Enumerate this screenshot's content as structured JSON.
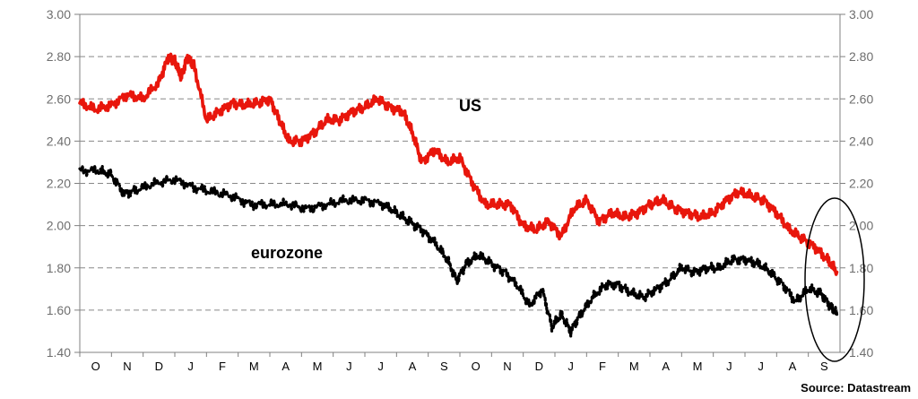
{
  "chart_data": {
    "type": "line",
    "title": "",
    "xlabel": "",
    "ylabel": "",
    "ylim": [
      1.4,
      3.0
    ],
    "yticks": [
      "1.40",
      "1.60",
      "1.80",
      "2.00",
      "2.20",
      "2.40",
      "2.60",
      "2.80",
      "3.00"
    ],
    "x_months": [
      "O",
      "N",
      "D",
      "J",
      "F",
      "M",
      "A",
      "M",
      "J",
      "J",
      "A",
      "S",
      "O",
      "N",
      "D",
      "J",
      "F",
      "M",
      "A",
      "M",
      "J",
      "J",
      "A",
      "S"
    ],
    "grid": "horizontal-dashed",
    "series": [
      {
        "name": "US",
        "color": "#e8160c",
        "style": "solid",
        "points": [
          [
            0.0,
            2.58
          ],
          [
            0.5,
            2.55
          ],
          [
            1.0,
            2.57
          ],
          [
            1.5,
            2.62
          ],
          [
            2.0,
            2.6
          ],
          [
            2.5,
            2.68
          ],
          [
            2.8,
            2.8
          ],
          [
            3.0,
            2.78
          ],
          [
            3.2,
            2.7
          ],
          [
            3.4,
            2.8
          ],
          [
            3.6,
            2.76
          ],
          [
            4.0,
            2.5
          ],
          [
            4.4,
            2.54
          ],
          [
            4.8,
            2.58
          ],
          [
            5.2,
            2.57
          ],
          [
            5.6,
            2.58
          ],
          [
            6.0,
            2.6
          ],
          [
            6.3,
            2.5
          ],
          [
            6.6,
            2.4
          ],
          [
            7.0,
            2.4
          ],
          [
            7.4,
            2.44
          ],
          [
            7.8,
            2.5
          ],
          [
            8.2,
            2.5
          ],
          [
            8.6,
            2.54
          ],
          [
            9.0,
            2.56
          ],
          [
            9.4,
            2.6
          ],
          [
            9.8,
            2.56
          ],
          [
            10.2,
            2.54
          ],
          [
            10.5,
            2.44
          ],
          [
            10.8,
            2.3
          ],
          [
            11.2,
            2.36
          ],
          [
            11.6,
            2.3
          ],
          [
            12.0,
            2.32
          ],
          [
            12.4,
            2.2
          ],
          [
            12.8,
            2.1
          ],
          [
            13.2,
            2.1
          ],
          [
            13.6,
            2.1
          ],
          [
            14.0,
            2.0
          ],
          [
            14.4,
            1.98
          ],
          [
            14.8,
            2.02
          ],
          [
            15.2,
            1.95
          ],
          [
            15.6,
            2.08
          ],
          [
            16.0,
            2.12
          ],
          [
            16.4,
            2.02
          ],
          [
            16.8,
            2.06
          ],
          [
            17.2,
            2.04
          ],
          [
            17.6,
            2.06
          ],
          [
            18.0,
            2.1
          ],
          [
            18.4,
            2.12
          ],
          [
            18.8,
            2.08
          ],
          [
            19.2,
            2.06
          ],
          [
            19.6,
            2.04
          ],
          [
            20.0,
            2.06
          ],
          [
            20.4,
            2.12
          ],
          [
            20.8,
            2.16
          ],
          [
            21.2,
            2.14
          ],
          [
            21.6,
            2.12
          ],
          [
            22.0,
            2.06
          ],
          [
            22.4,
            1.98
          ],
          [
            22.8,
            1.94
          ],
          [
            23.2,
            1.9
          ],
          [
            23.6,
            1.84
          ],
          [
            23.9,
            1.78
          ]
        ]
      },
      {
        "name": "eurozone",
        "color": "#000000",
        "style": "dotted",
        "points": [
          [
            0.0,
            2.26
          ],
          [
            0.6,
            2.26
          ],
          [
            1.0,
            2.24
          ],
          [
            1.4,
            2.15
          ],
          [
            1.8,
            2.17
          ],
          [
            2.4,
            2.2
          ],
          [
            3.0,
            2.22
          ],
          [
            3.6,
            2.18
          ],
          [
            4.2,
            2.16
          ],
          [
            4.8,
            2.14
          ],
          [
            5.4,
            2.1
          ],
          [
            6.0,
            2.1
          ],
          [
            6.6,
            2.1
          ],
          [
            7.2,
            2.08
          ],
          [
            7.8,
            2.1
          ],
          [
            8.4,
            2.12
          ],
          [
            9.0,
            2.12
          ],
          [
            9.6,
            2.1
          ],
          [
            10.0,
            2.06
          ],
          [
            10.4,
            2.02
          ],
          [
            10.8,
            1.98
          ],
          [
            11.2,
            1.92
          ],
          [
            11.6,
            1.84
          ],
          [
            11.9,
            1.74
          ],
          [
            12.2,
            1.82
          ],
          [
            12.6,
            1.86
          ],
          [
            13.0,
            1.82
          ],
          [
            13.4,
            1.78
          ],
          [
            13.8,
            1.72
          ],
          [
            14.2,
            1.62
          ],
          [
            14.6,
            1.7
          ],
          [
            14.9,
            1.52
          ],
          [
            15.2,
            1.58
          ],
          [
            15.5,
            1.5
          ],
          [
            15.8,
            1.58
          ],
          [
            16.2,
            1.66
          ],
          [
            16.6,
            1.72
          ],
          [
            17.0,
            1.72
          ],
          [
            17.4,
            1.68
          ],
          [
            17.8,
            1.66
          ],
          [
            18.2,
            1.7
          ],
          [
            18.6,
            1.74
          ],
          [
            19.0,
            1.8
          ],
          [
            19.4,
            1.78
          ],
          [
            19.8,
            1.8
          ],
          [
            20.2,
            1.8
          ],
          [
            20.6,
            1.84
          ],
          [
            21.0,
            1.84
          ],
          [
            21.4,
            1.82
          ],
          [
            21.8,
            1.78
          ],
          [
            22.2,
            1.72
          ],
          [
            22.6,
            1.64
          ],
          [
            23.0,
            1.7
          ],
          [
            23.4,
            1.68
          ],
          [
            23.7,
            1.62
          ],
          [
            23.9,
            1.58
          ]
        ]
      }
    ],
    "annotations": [
      {
        "text": "US",
        "series": "US"
      },
      {
        "text": "eurozone",
        "series": "eurozone"
      },
      {
        "shape": "ellipse",
        "around": "latest month"
      }
    ],
    "source": "Source: Datastream"
  }
}
